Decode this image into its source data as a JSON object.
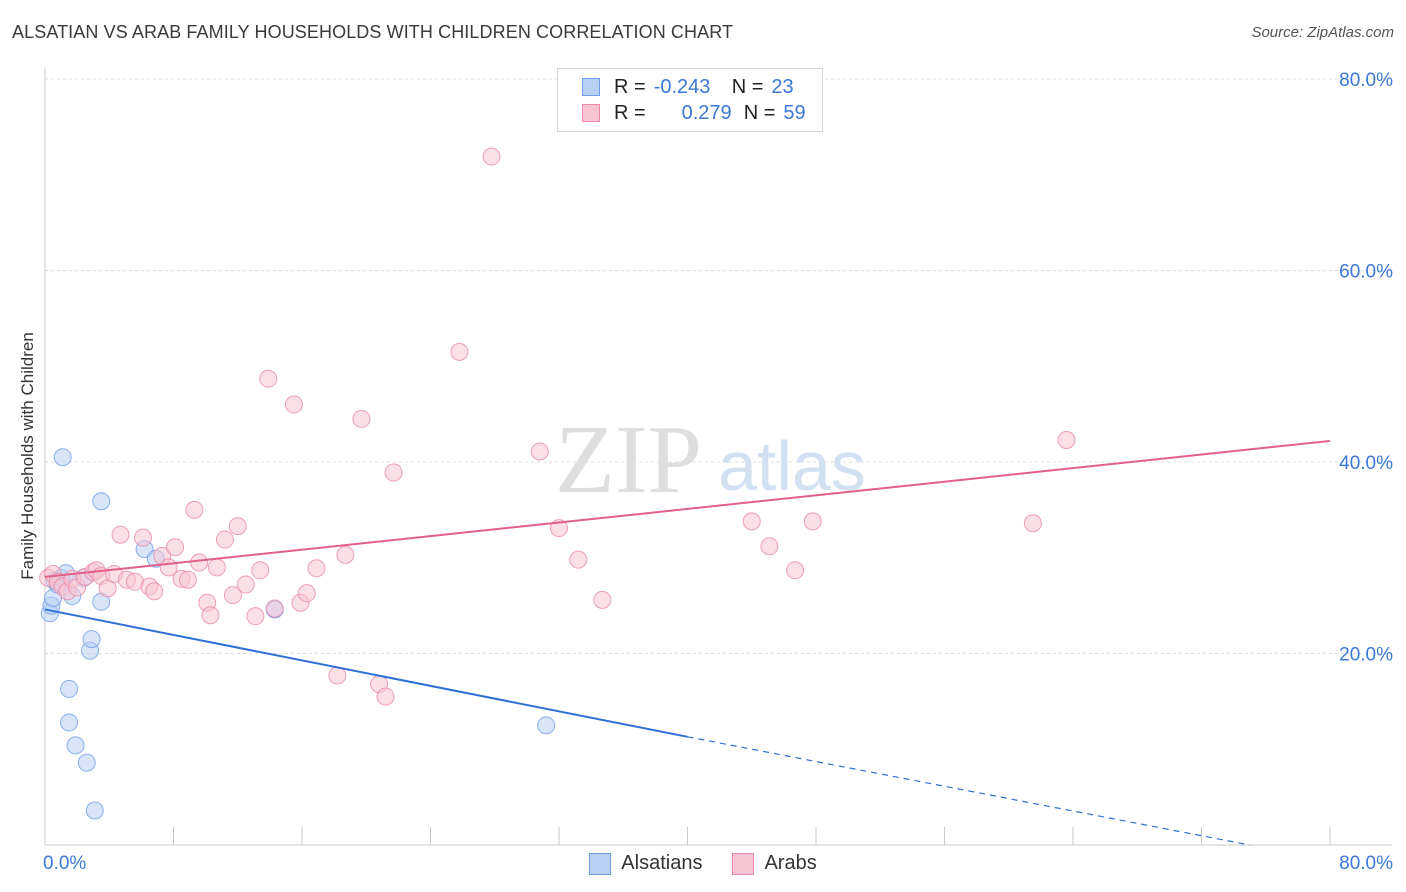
{
  "title": "ALSATIAN VS ARAB FAMILY HOUSEHOLDS WITH CHILDREN CORRELATION CHART",
  "source": "Source: ZipAtlas.com",
  "watermark": {
    "zip": "ZIP",
    "atlas": "atlas"
  },
  "legend": {
    "rows": [
      {
        "r_label": "R =",
        "r_value": "-0.243",
        "n_label": "N =",
        "n_value": "23",
        "color": "#6f9ee8",
        "fill": "#b8d0f4"
      },
      {
        "r_label": "R =",
        "r_value": "0.279",
        "n_label": "N =",
        "n_value": "59",
        "color": "#e88aa8",
        "fill": "#f8c4d4"
      }
    ]
  },
  "bottom_legend": [
    "Alsatians",
    "Arabs"
  ],
  "chart_data": {
    "type": "scatter",
    "title": "ALSATIAN VS ARAB FAMILY HOUSEHOLDS WITH CHILDREN CORRELATION CHART",
    "xlabel": "",
    "ylabel": "Family Households with Children",
    "xlim": [
      0,
      80
    ],
    "ylim": [
      0,
      80
    ],
    "x_tick_labels": [
      "0.0%",
      "80.0%"
    ],
    "y_ticks": [
      20,
      40,
      60,
      80
    ],
    "y_tick_labels": [
      "20.0%",
      "40.0%",
      "60.0%",
      "80.0%"
    ],
    "grid": true,
    "legend_position": "top-center",
    "series": [
      {
        "name": "Alsatians",
        "color": "#6f9ee8",
        "fill": "#b8d0f4",
        "points": [
          [
            0.3,
            24.2
          ],
          [
            0.4,
            25.0
          ],
          [
            0.5,
            25.8
          ],
          [
            0.6,
            27.6
          ],
          [
            0.8,
            27.2
          ],
          [
            1.0,
            27.9
          ],
          [
            1.1,
            40.5
          ],
          [
            1.3,
            28.4
          ],
          [
            1.5,
            16.3
          ],
          [
            1.5,
            12.8
          ],
          [
            1.7,
            26.0
          ],
          [
            1.9,
            10.4
          ],
          [
            2.4,
            27.9
          ],
          [
            2.6,
            8.6
          ],
          [
            2.8,
            20.3
          ],
          [
            2.9,
            21.5
          ],
          [
            3.1,
            3.6
          ],
          [
            3.5,
            25.4
          ],
          [
            3.5,
            35.9
          ],
          [
            6.2,
            30.9
          ],
          [
            6.9,
            29.9
          ],
          [
            14.3,
            24.6
          ],
          [
            31.2,
            12.5
          ]
        ],
        "trend": {
          "x0": 0,
          "y0": 24.6,
          "x1": 40,
          "y1": 11.3,
          "dash_to_x": 75,
          "dash_to_y": 0
        }
      },
      {
        "name": "Arabs",
        "color": "#e88aa8",
        "fill": "#f8c4d4",
        "points": [
          [
            0.2,
            27.9
          ],
          [
            0.5,
            28.3
          ],
          [
            0.8,
            27.5
          ],
          [
            1.1,
            27.0
          ],
          [
            1.4,
            26.5
          ],
          [
            1.7,
            27.8
          ],
          [
            2.0,
            26.9
          ],
          [
            2.5,
            28.0
          ],
          [
            3.0,
            28.5
          ],
          [
            3.2,
            28.7
          ],
          [
            3.5,
            28.1
          ],
          [
            3.9,
            26.8
          ],
          [
            4.3,
            28.3
          ],
          [
            4.7,
            32.4
          ],
          [
            5.1,
            27.7
          ],
          [
            5.6,
            27.5
          ],
          [
            6.1,
            32.1
          ],
          [
            6.5,
            27.0
          ],
          [
            6.8,
            26.5
          ],
          [
            7.3,
            30.2
          ],
          [
            7.7,
            29.0
          ],
          [
            8.1,
            31.1
          ],
          [
            8.5,
            27.8
          ],
          [
            8.9,
            27.7
          ],
          [
            9.3,
            35.0
          ],
          [
            9.6,
            29.5
          ],
          [
            10.1,
            25.3
          ],
          [
            10.3,
            24.0
          ],
          [
            10.7,
            29.0
          ],
          [
            11.2,
            31.9
          ],
          [
            11.7,
            26.1
          ],
          [
            12.0,
            33.3
          ],
          [
            12.5,
            27.2
          ],
          [
            13.1,
            23.9
          ],
          [
            13.4,
            28.7
          ],
          [
            13.9,
            48.7
          ],
          [
            14.3,
            24.7
          ],
          [
            15.5,
            46.0
          ],
          [
            15.9,
            25.3
          ],
          [
            16.3,
            26.3
          ],
          [
            16.9,
            28.9
          ],
          [
            18.2,
            17.7
          ],
          [
            18.7,
            30.3
          ],
          [
            19.7,
            44.5
          ],
          [
            20.8,
            16.8
          ],
          [
            21.2,
            15.5
          ],
          [
            21.7,
            38.9
          ],
          [
            25.8,
            51.5
          ],
          [
            27.8,
            71.9
          ],
          [
            30.8,
            41.1
          ],
          [
            32.0,
            33.1
          ],
          [
            33.2,
            29.8
          ],
          [
            34.7,
            25.6
          ],
          [
            44.0,
            33.8
          ],
          [
            45.1,
            31.2
          ],
          [
            46.7,
            28.7
          ],
          [
            47.8,
            33.8
          ],
          [
            61.5,
            33.6
          ],
          [
            63.6,
            42.3
          ]
        ],
        "trend": {
          "x0": 0,
          "y0": 28.0,
          "x1": 80,
          "y1": 42.2
        }
      }
    ]
  }
}
